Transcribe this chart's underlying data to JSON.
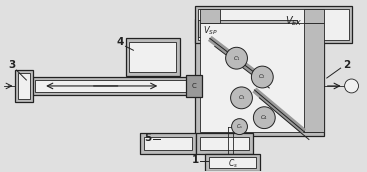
{
  "bg_color": "#e0e0e0",
  "line_color": "#555555",
  "dark_color": "#222222",
  "fill_light": "#bbbbbb",
  "fill_mid": "#999999",
  "fill_dark": "#777777",
  "white": "#f0f0f0",
  "figsize": [
    3.67,
    1.72
  ],
  "dpi": 100
}
